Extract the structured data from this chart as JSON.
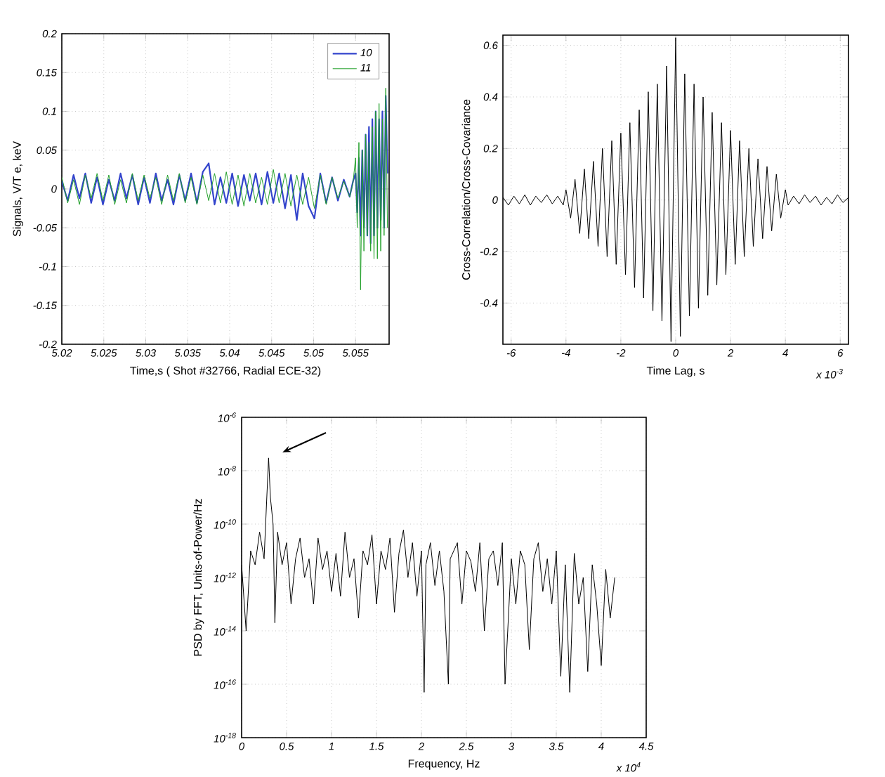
{
  "chart_data": [
    {
      "type": "line",
      "xlabel": "Time,s ( Shot #32766, Radial ECE-32)",
      "ylabel": "Signals, V/T e, keV",
      "x": [
        5.02,
        5.0207,
        5.0214,
        5.0221,
        5.0228,
        5.0235,
        5.0242,
        5.0249,
        5.0256,
        5.0263,
        5.027,
        5.0277,
        5.0284,
        5.0291,
        5.0298,
        5.0305,
        5.0312,
        5.0319,
        5.0326,
        5.0333,
        5.034,
        5.0347,
        5.0354,
        5.0361,
        5.0368,
        5.0375,
        5.0382,
        5.0389,
        5.0396,
        5.0403,
        5.041,
        5.0417,
        5.0424,
        5.0431,
        5.0438,
        5.0445,
        5.0452,
        5.0459,
        5.0466,
        5.0473,
        5.048,
        5.0487,
        5.0494,
        5.0501,
        5.0508,
        5.0515,
        5.0522,
        5.0529,
        5.0536,
        5.0543,
        5.0547,
        5.055,
        5.0552,
        5.0554,
        5.0556,
        5.0558,
        5.056,
        5.0562,
        5.0564,
        5.0566,
        5.0568,
        5.057,
        5.0572,
        5.0574,
        5.0576,
        5.0578,
        5.058,
        5.0582,
        5.0584,
        5.0586,
        5.0588
      ],
      "series": [
        {
          "name": "*10*",
          "color": "#3344cc",
          "values": [
            0.01,
            -0.015,
            0.018,
            -0.012,
            0.02,
            -0.018,
            0.015,
            -0.02,
            0.012,
            -0.015,
            0.02,
            -0.012,
            0.018,
            -0.02,
            0.015,
            -0.018,
            0.02,
            -0.015,
            0.012,
            -0.02,
            0.018,
            -0.015,
            0.02,
            -0.018,
            0.022,
            0.033,
            -0.02,
            0.015,
            -0.018,
            0.02,
            -0.022,
            0.018,
            -0.015,
            0.02,
            -0.02,
            0.022,
            -0.018,
            0.02,
            -0.025,
            0.018,
            -0.04,
            0.02,
            -0.022,
            -0.038,
            0.02,
            -0.018,
            0.015,
            -0.015,
            0.012,
            -0.01,
            0.01,
            0.02,
            -0.03,
            0.04,
            -0.06,
            0.05,
            -0.05,
            0.07,
            -0.06,
            0.08,
            -0.07,
            0.09,
            -0.06,
            0.1,
            -0.05,
            0.09,
            -0.04,
            0.1,
            -0.05,
            0.12,
            0.02
          ]
        },
        {
          "name": "*11*",
          "color": "#22a02a",
          "values": [
            0.015,
            -0.018,
            0.012,
            -0.02,
            0.018,
            -0.012,
            0.02,
            -0.015,
            0.018,
            -0.02,
            0.012,
            -0.018,
            0.02,
            -0.015,
            0.018,
            -0.012,
            0.015,
            -0.02,
            0.018,
            -0.015,
            0.02,
            -0.018,
            0.015,
            -0.02,
            0.018,
            -0.015,
            0.02,
            -0.018,
            0.022,
            -0.02,
            0.018,
            -0.022,
            0.02,
            -0.018,
            0.015,
            -0.02,
            0.025,
            -0.018,
            0.02,
            -0.022,
            0.018,
            -0.02,
            0.015,
            -0.025,
            0.018,
            -0.02,
            0.015,
            -0.012,
            0.01,
            -0.01,
            0.008,
            0.04,
            -0.05,
            0.06,
            -0.13,
            0.05,
            -0.08,
            0.07,
            -0.06,
            0.06,
            -0.08,
            0.08,
            -0.09,
            0.1,
            -0.09,
            0.11,
            -0.08,
            0.09,
            -0.06,
            0.13,
            -0.05
          ]
        }
      ],
      "xlim": [
        5.02,
        5.059
      ],
      "ylim": [
        -0.2,
        0.2
      ],
      "xticks": [
        5.02,
        5.025,
        5.03,
        5.035,
        5.04,
        5.045,
        5.05,
        5.055
      ],
      "yticks": [
        -0.2,
        -0.15,
        -0.1,
        -0.05,
        0,
        0.05,
        0.1,
        0.15,
        0.2
      ],
      "grid": true,
      "legend": "top right",
      "marker": "none",
      "line_style": "solid"
    },
    {
      "type": "line",
      "xlabel": "Time Lag, s",
      "ylabel": "Cross-Correlation/Cross-Covariance",
      "x": [
        -6.3,
        -6.1,
        -5.9,
        -5.7,
        -5.5,
        -5.3,
        -5.1,
        -4.9,
        -4.7,
        -4.5,
        -4.3,
        -4.1,
        -4,
        -3.83,
        -3.67,
        -3.5,
        -3.33,
        -3.17,
        -3,
        -2.83,
        -2.67,
        -2.5,
        -2.33,
        -2.17,
        -2,
        -1.83,
        -1.67,
        -1.5,
        -1.33,
        -1.17,
        -1,
        -0.83,
        -0.67,
        -0.5,
        -0.33,
        -0.17,
        0,
        0.17,
        0.33,
        0.5,
        0.67,
        0.83,
        1,
        1.17,
        1.33,
        1.5,
        1.67,
        1.83,
        2,
        2.17,
        2.33,
        2.5,
        2.67,
        2.83,
        3,
        3.17,
        3.33,
        3.5,
        3.67,
        3.83,
        4,
        4.1,
        4.3,
        4.5,
        4.7,
        4.9,
        5.1,
        5.3,
        5.5,
        5.7,
        5.9,
        6.1,
        6.3
      ],
      "series": [
        {
          "color": "#000000",
          "values": [
            0.01,
            -0.02,
            0.015,
            -0.015,
            0.02,
            -0.02,
            0.015,
            -0.01,
            0.02,
            -0.015,
            0.015,
            -0.02,
            0.04,
            -0.07,
            0.08,
            -0.13,
            0.12,
            -0.15,
            0.15,
            -0.18,
            0.2,
            -0.22,
            0.23,
            -0.25,
            0.26,
            -0.29,
            0.3,
            -0.34,
            0.35,
            -0.38,
            0.42,
            -0.43,
            0.45,
            -0.47,
            0.52,
            -0.55,
            0.63,
            -0.53,
            0.49,
            -0.45,
            0.45,
            -0.42,
            0.4,
            -0.37,
            0.34,
            -0.33,
            0.3,
            -0.29,
            0.27,
            -0.25,
            0.23,
            -0.22,
            0.2,
            -0.18,
            0.16,
            -0.15,
            0.13,
            -0.12,
            0.1,
            -0.07,
            0.04,
            -0.02,
            0.015,
            -0.015,
            0.02,
            -0.01,
            0.015,
            -0.02,
            0.01,
            -0.015,
            0.02,
            -0.01,
            0.01
          ]
        }
      ],
      "xlim": [
        -6.3,
        6.3
      ],
      "ylim": [
        -0.56,
        0.64
      ],
      "xticks": [
        -6,
        -4,
        -2,
        0,
        2,
        4,
        6
      ],
      "yticks": [
        -0.4,
        -0.2,
        0,
        0.2,
        0.4,
        0.6
      ],
      "grid": true,
      "marker": "none",
      "line_style": "solid",
      "annotations": [
        "x 10$^{-3}$"
      ]
    },
    {
      "type": "line",
      "xlabel": "Frequency, Hz",
      "ylabel": "PSD by FFT, Units-of-Power/Hz",
      "x": [
        0,
        0.05,
        0.1,
        0.15,
        0.2,
        0.25,
        0.28,
        0.3,
        0.32,
        0.35,
        0.37,
        0.4,
        0.45,
        0.5,
        0.55,
        0.6,
        0.65,
        0.7,
        0.75,
        0.8,
        0.85,
        0.9,
        0.95,
        1,
        1.05,
        1.1,
        1.15,
        1.2,
        1.25,
        1.3,
        1.35,
        1.4,
        1.45,
        1.5,
        1.55,
        1.6,
        1.65,
        1.7,
        1.75,
        1.8,
        1.85,
        1.9,
        1.95,
        2,
        2.03,
        2.05,
        2.1,
        2.15,
        2.2,
        2.25,
        2.3,
        2.32,
        2.4,
        2.45,
        2.5,
        2.55,
        2.6,
        2.65,
        2.7,
        2.75,
        2.8,
        2.85,
        2.9,
        2.93,
        3,
        3.05,
        3.1,
        3.15,
        3.2,
        3.25,
        3.3,
        3.35,
        3.4,
        3.45,
        3.5,
        3.55,
        3.6,
        3.65,
        3.7,
        3.75,
        3.8,
        3.85,
        3.9,
        3.95,
        4,
        4.05,
        4.1,
        4.15
      ],
      "series": [
        {
          "color": "#000000",
          "values": [
            3e-12,
            1e-14,
            1e-11,
            3e-12,
            5e-11,
            5e-12,
            1e-09,
            3e-08,
            1e-09,
            1e-10,
            2e-14,
            5e-11,
            3e-12,
            2e-11,
            1e-13,
            5e-12,
            3e-11,
            1e-12,
            5e-12,
            1e-13,
            3e-11,
            2e-12,
            1e-11,
            3e-13,
            8e-12,
            2e-13,
            5e-11,
            1e-12,
            5e-12,
            3e-14,
            1e-11,
            3e-12,
            4e-11,
            1e-13,
            1e-11,
            2e-12,
            3e-11,
            5e-14,
            8e-12,
            6e-11,
            1e-12,
            2e-11,
            2e-13,
            1e-11,
            5e-17,
            3e-12,
            2e-11,
            5e-13,
            1e-11,
            3e-13,
            1e-16,
            5e-12,
            2e-11,
            1e-13,
            1e-11,
            4e-12,
            3e-13,
            2e-11,
            1e-14,
            5e-12,
            1e-11,
            5e-13,
            2e-11,
            1e-16,
            5e-12,
            1e-13,
            1e-11,
            3e-12,
            2e-15,
            5e-12,
            2e-11,
            3e-13,
            5e-12,
            1e-13,
            1e-11,
            2e-16,
            3e-12,
            5e-17,
            8e-12,
            1e-13,
            1e-12,
            3e-16,
            3e-12,
            1e-13,
            5e-16,
            2e-12,
            3e-14,
            1e-12
          ]
        }
      ],
      "xlim": [
        0,
        4.5
      ],
      "ylim": [
        1e-18,
        1e-06
      ],
      "log": "y",
      "xticks": [
        0,
        0.5,
        1,
        1.5,
        2,
        2.5,
        3,
        3.5,
        4,
        4.5
      ],
      "yticks": [
        {
          "value": 1e-18,
          "label": "10$^{-18}$"
        },
        {
          "value": 1e-16,
          "label": "10$^{-16}$"
        },
        {
          "value": 1e-14,
          "label": "10$^{-14}$"
        },
        {
          "value": 1e-12,
          "label": "10$^{-12}$"
        },
        {
          "value": 1e-10,
          "label": "10$^{-10}$"
        },
        {
          "value": 1e-08,
          "label": "10$^{-8}$"
        },
        {
          "value": 1e-06,
          "label": "10$^{-6}$"
        }
      ],
      "grid": true,
      "marker": "none",
      "line_style": "solid",
      "annotations": [
        "x 10$^{4}$"
      ]
    }
  ]
}
